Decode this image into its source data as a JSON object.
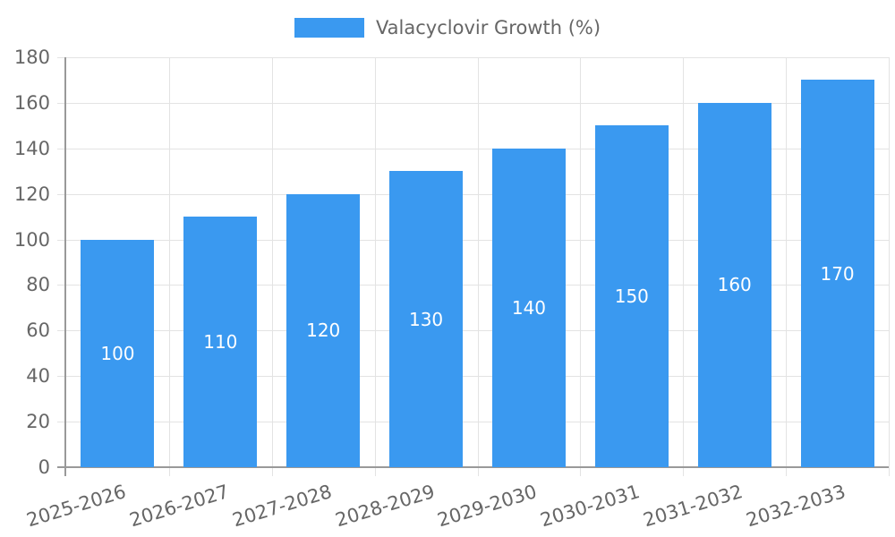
{
  "chart_data": {
    "type": "bar",
    "title": "",
    "categories": [
      "2025-2026",
      "2026-2027",
      "2027-2028",
      "2028-2029",
      "2029-2030",
      "2030-2031",
      "2031-2032",
      "2032-2033"
    ],
    "series": [
      {
        "name": "Valacyclovir Growth (%)",
        "values": [
          100,
          110,
          120,
          130,
          140,
          150,
          160,
          170
        ],
        "color": "#3a99f0"
      }
    ],
    "value_labels": [
      100,
      110,
      120,
      130,
      140,
      150,
      160,
      170
    ],
    "xlabel": "",
    "ylabel": "",
    "ylim": [
      0,
      180
    ],
    "yticks": [
      0,
      20,
      40,
      60,
      80,
      100,
      120,
      140,
      160,
      180
    ],
    "grid": true,
    "legend_position": "top",
    "colors": {
      "bar": "#3a99f0",
      "gridline": "#e3e3e3",
      "axis": "#999999",
      "tick_text": "#666666",
      "value_text": "#ffffff",
      "background": "#ffffff"
    }
  }
}
